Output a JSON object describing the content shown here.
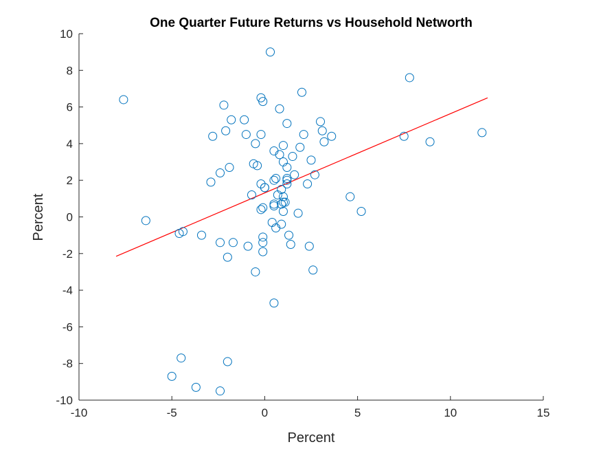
{
  "chart_data": {
    "type": "scatter",
    "title": "One Quarter Future Returns vs Household Networth",
    "xlabel": "Percent",
    "ylabel": "Percent",
    "xlim": [
      -10,
      15
    ],
    "ylim": [
      -10,
      10
    ],
    "xticks": [
      -10,
      -5,
      0,
      5,
      10,
      15
    ],
    "yticks": [
      -10,
      -8,
      -6,
      -4,
      -2,
      0,
      2,
      4,
      6,
      8,
      10
    ],
    "xtick_labels": [
      "-10",
      "-5",
      "0",
      "5",
      "10",
      "15"
    ],
    "ytick_labels": [
      "-10",
      "-8",
      "-6",
      "-4",
      "-2",
      "0",
      "2",
      "4",
      "6",
      "8",
      "10"
    ],
    "grid": false,
    "marker_color": "#0072BD",
    "fit_color": "#FF0000",
    "points": [
      [
        -7.6,
        6.4
      ],
      [
        -6.4,
        -0.2
      ],
      [
        -4.6,
        -0.9
      ],
      [
        -4.4,
        -0.8
      ],
      [
        -3.4,
        -1.0
      ],
      [
        -2.9,
        1.9
      ],
      [
        -2.8,
        4.4
      ],
      [
        -2.4,
        2.4
      ],
      [
        -2.4,
        -1.4
      ],
      [
        -2.2,
        6.1
      ],
      [
        -2.1,
        4.7
      ],
      [
        -1.9,
        2.7
      ],
      [
        -1.8,
        5.3
      ],
      [
        -1.7,
        -1.4
      ],
      [
        -1.1,
        5.3
      ],
      [
        -1.0,
        4.5
      ],
      [
        -0.9,
        -1.6
      ],
      [
        -0.7,
        1.2
      ],
      [
        -0.6,
        2.9
      ],
      [
        -0.5,
        4.0
      ],
      [
        -0.5,
        -3.0
      ],
      [
        -0.4,
        2.8
      ],
      [
        -0.2,
        1.8
      ],
      [
        -0.2,
        4.5
      ],
      [
        -0.2,
        6.5
      ],
      [
        -0.1,
        6.3
      ],
      [
        -0.1,
        0.5
      ],
      [
        -0.1,
        -1.1
      ],
      [
        -0.1,
        -1.4
      ],
      [
        -0.2,
        0.4
      ],
      [
        0.0,
        1.6
      ],
      [
        0.0,
        1.6
      ],
      [
        -0.1,
        -1.9
      ],
      [
        0.3,
        9.0
      ],
      [
        0.4,
        -0.3
      ],
      [
        0.5,
        3.6
      ],
      [
        0.5,
        2.0
      ],
      [
        0.5,
        0.6
      ],
      [
        0.5,
        0.7
      ],
      [
        0.5,
        -4.7
      ],
      [
        0.6,
        2.1
      ],
      [
        0.6,
        -0.6
      ],
      [
        0.7,
        1.2
      ],
      [
        0.8,
        3.4
      ],
      [
        0.8,
        5.9
      ],
      [
        0.9,
        1.5
      ],
      [
        0.9,
        -0.4
      ],
      [
        0.9,
        0.7
      ],
      [
        1.0,
        3.9
      ],
      [
        1.0,
        3.0
      ],
      [
        1.0,
        1.1
      ],
      [
        1.0,
        0.8
      ],
      [
        1.0,
        0.3
      ],
      [
        1.1,
        0.8
      ],
      [
        1.2,
        5.1
      ],
      [
        1.2,
        2.7
      ],
      [
        1.2,
        2.1
      ],
      [
        1.2,
        2.0
      ],
      [
        1.2,
        1.8
      ],
      [
        1.3,
        -1.0
      ],
      [
        1.4,
        -1.5
      ],
      [
        1.5,
        3.3
      ],
      [
        1.6,
        2.3
      ],
      [
        1.8,
        0.2
      ],
      [
        1.9,
        3.8
      ],
      [
        2.0,
        6.8
      ],
      [
        2.1,
        4.5
      ],
      [
        2.3,
        1.8
      ],
      [
        2.4,
        -1.6
      ],
      [
        2.5,
        3.1
      ],
      [
        2.6,
        -2.9
      ],
      [
        2.7,
        2.3
      ],
      [
        3.0,
        5.2
      ],
      [
        3.1,
        4.7
      ],
      [
        3.2,
        4.1
      ],
      [
        3.6,
        4.4
      ],
      [
        4.6,
        1.1
      ],
      [
        5.2,
        0.3
      ],
      [
        7.5,
        4.4
      ],
      [
        7.8,
        7.6
      ],
      [
        8.9,
        4.1
      ],
      [
        11.7,
        4.6
      ],
      [
        -2.0,
        -2.2
      ],
      [
        -2.0,
        -7.9
      ],
      [
        -2.4,
        -9.5
      ],
      [
        -3.7,
        -9.3
      ],
      [
        -4.5,
        -7.7
      ],
      [
        -5.0,
        -8.7
      ]
    ],
    "fit_line": {
      "x": [
        -8,
        12
      ],
      "y": [
        -2.15,
        6.5
      ]
    }
  }
}
